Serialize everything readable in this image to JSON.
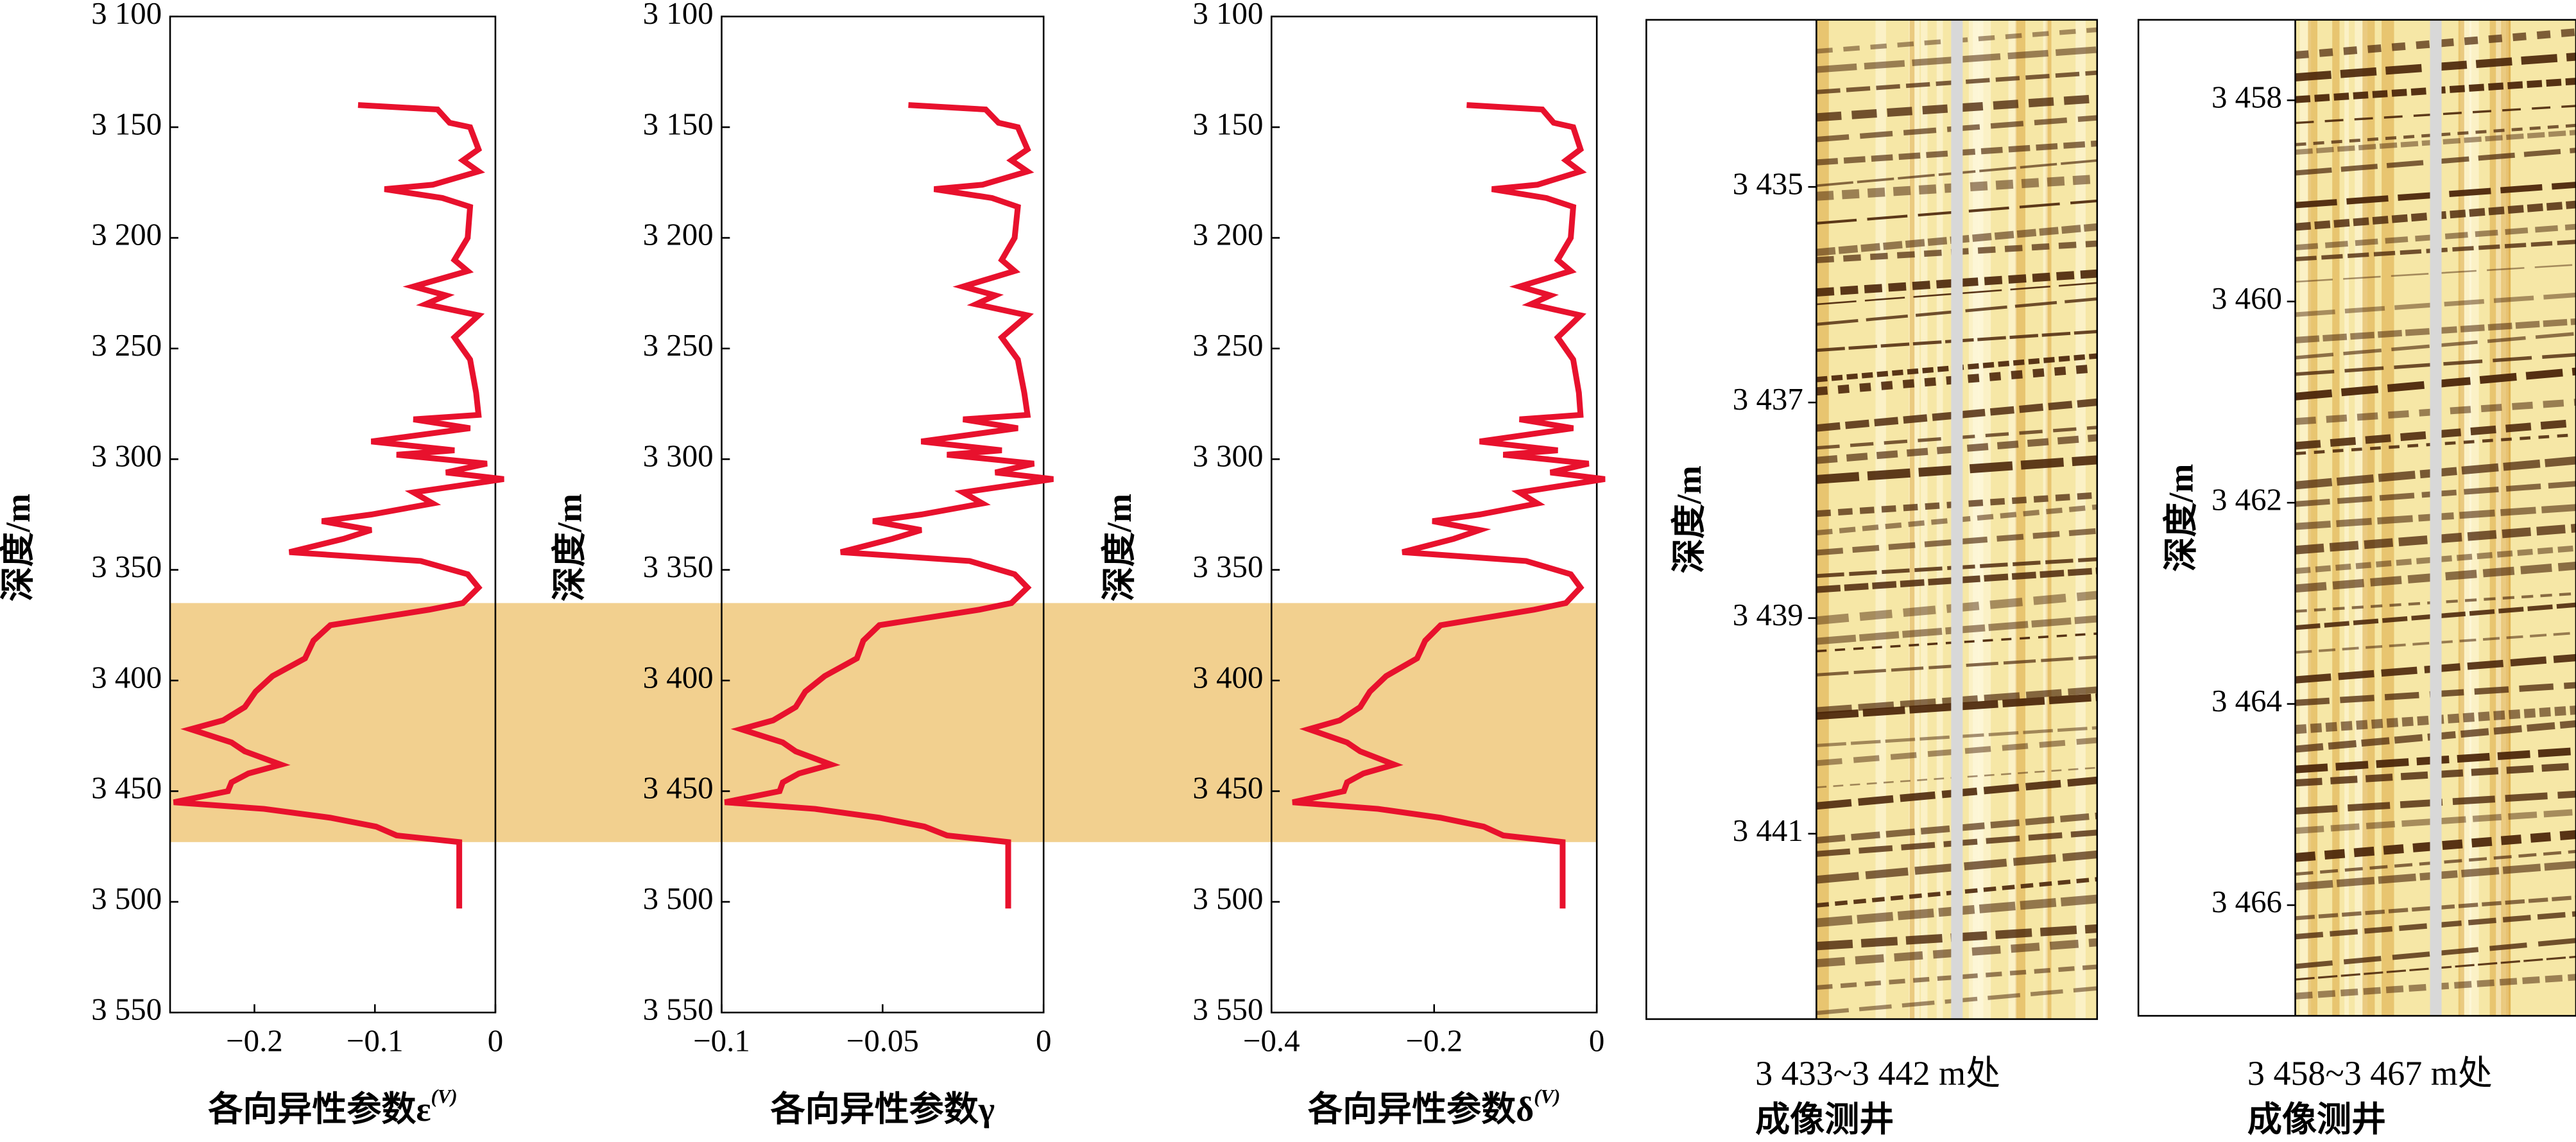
{
  "highlight": {
    "range": [
      3365,
      3473
    ],
    "color": "#f2d08f"
  },
  "chart_data": [
    {
      "type": "line",
      "y_label": "深度/m",
      "x_label": "各向异性参数ε",
      "x_label_sup": "(V)",
      "color": "#e8112d",
      "ylim": [
        3100,
        3550
      ],
      "xlim": [
        -0.27,
        0
      ],
      "yticks": [
        {
          "value": 3100,
          "label": "3 100"
        },
        {
          "value": 3150,
          "label": "3 150"
        },
        {
          "value": 3200,
          "label": "3 200"
        },
        {
          "value": 3250,
          "label": "3 250"
        },
        {
          "value": 3300,
          "label": "3 300"
        },
        {
          "value": 3350,
          "label": "3 350"
        },
        {
          "value": 3400,
          "label": "3 400"
        },
        {
          "value": 3450,
          "label": "3 450"
        },
        {
          "value": 3500,
          "label": "3 500"
        },
        {
          "value": 3550,
          "label": "3 550"
        }
      ],
      "xticks": [
        {
          "value": -0.2,
          "label": "−0.2"
        },
        {
          "value": -0.1,
          "label": "−0.1"
        },
        0
      ],
      "depth": [
        3140,
        3142,
        3148,
        3150,
        3160,
        3165,
        3170,
        3176,
        3178,
        3182,
        3186,
        3200,
        3210,
        3215,
        3222,
        3226,
        3230,
        3235,
        3245,
        3255,
        3270,
        3280,
        3282,
        3286,
        3292,
        3296,
        3298,
        3302,
        3306,
        3309,
        3315,
        3320,
        3325,
        3328,
        3332,
        3336,
        3342,
        3346,
        3352,
        3358,
        3365,
        3368,
        3375,
        3382,
        3390,
        3398,
        3405,
        3412,
        3418,
        3422,
        3428,
        3432,
        3438,
        3442,
        3446,
        3450,
        3455,
        3458,
        3462,
        3466,
        3470,
        3473,
        3503
      ],
      "values": [
        -0.114,
        -0.048,
        -0.038,
        -0.021,
        -0.014,
        -0.027,
        -0.014,
        -0.052,
        -0.092,
        -0.044,
        -0.021,
        -0.023,
        -0.034,
        -0.023,
        -0.068,
        -0.041,
        -0.058,
        -0.014,
        -0.034,
        -0.021,
        -0.016,
        -0.014,
        -0.068,
        -0.021,
        -0.103,
        -0.034,
        -0.082,
        -0.007,
        -0.041,
        0.007,
        -0.068,
        -0.052,
        -0.103,
        -0.144,
        -0.103,
        -0.126,
        -0.171,
        -0.062,
        -0.023,
        -0.014,
        -0.027,
        -0.055,
        -0.137,
        -0.151,
        -0.158,
        -0.185,
        -0.199,
        -0.208,
        -0.226,
        -0.253,
        -0.219,
        -0.208,
        -0.178,
        -0.205,
        -0.219,
        -0.222,
        -0.267,
        -0.192,
        -0.137,
        -0.099,
        -0.082,
        -0.03,
        -0.03
      ]
    },
    {
      "type": "line",
      "y_label": "深度/m",
      "x_label": "各向异性参数γ",
      "color": "#e8112d",
      "ylim": [
        3100,
        3550
      ],
      "xlim": [
        -0.1,
        0
      ],
      "yticks": [
        {
          "value": 3100,
          "label": "3 100"
        },
        {
          "value": 3150,
          "label": "3 150"
        },
        {
          "value": 3200,
          "label": "3 200"
        },
        {
          "value": 3250,
          "label": "3 250"
        },
        {
          "value": 3300,
          "label": "3 300"
        },
        {
          "value": 3350,
          "label": "3 350"
        },
        {
          "value": 3400,
          "label": "3 400"
        },
        {
          "value": 3450,
          "label": "3 450"
        },
        {
          "value": 3500,
          "label": "3 500"
        },
        {
          "value": 3550,
          "label": "3 550"
        }
      ],
      "xticks": [
        {
          "value": -0.1,
          "label": "−0.1"
        },
        {
          "value": -0.05,
          "label": "−0.05"
        },
        0
      ],
      "depth": [
        3140,
        3142,
        3148,
        3150,
        3160,
        3165,
        3170,
        3176,
        3178,
        3182,
        3186,
        3200,
        3210,
        3215,
        3222,
        3226,
        3230,
        3235,
        3245,
        3255,
        3270,
        3280,
        3282,
        3286,
        3292,
        3296,
        3298,
        3302,
        3306,
        3309,
        3315,
        3320,
        3325,
        3328,
        3332,
        3336,
        3342,
        3346,
        3352,
        3358,
        3365,
        3368,
        3375,
        3382,
        3390,
        3398,
        3405,
        3412,
        3418,
        3422,
        3428,
        3432,
        3438,
        3442,
        3446,
        3450,
        3455,
        3458,
        3462,
        3466,
        3470,
        3473,
        3503
      ],
      "values": [
        -0.042,
        -0.018,
        -0.014,
        -0.008,
        -0.005,
        -0.01,
        -0.005,
        -0.019,
        -0.034,
        -0.016,
        -0.008,
        -0.009,
        -0.013,
        -0.009,
        -0.025,
        -0.015,
        -0.021,
        -0.005,
        -0.013,
        -0.008,
        -0.006,
        -0.005,
        -0.025,
        -0.008,
        -0.038,
        -0.013,
        -0.03,
        -0.003,
        -0.015,
        0.003,
        -0.025,
        -0.019,
        -0.038,
        -0.053,
        -0.038,
        -0.047,
        -0.063,
        -0.023,
        -0.009,
        -0.005,
        -0.01,
        -0.02,
        -0.051,
        -0.056,
        -0.058,
        -0.068,
        -0.074,
        -0.077,
        -0.084,
        -0.094,
        -0.081,
        -0.077,
        -0.066,
        -0.076,
        -0.081,
        -0.082,
        -0.099,
        -0.071,
        -0.051,
        -0.037,
        -0.03,
        -0.011,
        -0.011
      ]
    },
    {
      "type": "line",
      "y_label": "深度/m",
      "x_label": "各向异性参数δ",
      "x_label_sup": "(V)",
      "color": "#e8112d",
      "ylim": [
        3100,
        3550
      ],
      "xlim": [
        -0.4,
        0
      ],
      "yticks": [
        {
          "value": 3100,
          "label": "3 100"
        },
        {
          "value": 3150,
          "label": "3 150"
        },
        {
          "value": 3200,
          "label": "3 200"
        },
        {
          "value": 3250,
          "label": "3 250"
        },
        {
          "value": 3300,
          "label": "3 300"
        },
        {
          "value": 3350,
          "label": "3 350"
        },
        {
          "value": 3400,
          "label": "3 400"
        },
        {
          "value": 3450,
          "label": "3 450"
        },
        {
          "value": 3500,
          "label": "3 500"
        },
        {
          "value": 3550,
          "label": "3 550"
        }
      ],
      "xticks": [
        {
          "value": -0.4,
          "label": "−0.4"
        },
        {
          "value": -0.2,
          "label": "−0.2"
        },
        0
      ],
      "depth": [
        3140,
        3142,
        3148,
        3150,
        3160,
        3165,
        3170,
        3176,
        3178,
        3182,
        3186,
        3200,
        3210,
        3215,
        3222,
        3226,
        3230,
        3235,
        3245,
        3255,
        3270,
        3280,
        3282,
        3286,
        3292,
        3296,
        3298,
        3302,
        3306,
        3309,
        3315,
        3320,
        3325,
        3328,
        3332,
        3336,
        3342,
        3346,
        3352,
        3358,
        3365,
        3368,
        3375,
        3382,
        3390,
        3398,
        3405,
        3412,
        3418,
        3422,
        3428,
        3432,
        3438,
        3442,
        3446,
        3450,
        3455,
        3458,
        3462,
        3466,
        3470,
        3473,
        3503
      ],
      "values": [
        -0.16,
        -0.067,
        -0.053,
        -0.029,
        -0.02,
        -0.038,
        -0.02,
        -0.073,
        -0.129,
        -0.062,
        -0.029,
        -0.032,
        -0.048,
        -0.032,
        -0.095,
        -0.057,
        -0.081,
        -0.02,
        -0.048,
        -0.029,
        -0.022,
        -0.02,
        -0.095,
        -0.029,
        -0.144,
        -0.048,
        -0.115,
        -0.01,
        -0.057,
        0.01,
        -0.095,
        -0.073,
        -0.144,
        -0.202,
        -0.144,
        -0.176,
        -0.239,
        -0.087,
        -0.032,
        -0.02,
        -0.038,
        -0.077,
        -0.192,
        -0.211,
        -0.221,
        -0.259,
        -0.279,
        -0.291,
        -0.316,
        -0.354,
        -0.307,
        -0.291,
        -0.249,
        -0.287,
        -0.307,
        -0.311,
        -0.374,
        -0.269,
        -0.192,
        -0.139,
        -0.115,
        -0.042,
        -0.042
      ]
    },
    {
      "type": "image_log",
      "y_label": "深度/m",
      "ylim": [
        3433.45,
        3442.72
      ],
      "yticks": [
        {
          "value": 3435,
          "label": "3 435"
        },
        {
          "value": 3437,
          "label": "3 437"
        },
        {
          "value": 3439,
          "label": "3 439"
        },
        {
          "value": 3441,
          "label": "3 441"
        }
      ],
      "caption": [
        "3 433~3 442 m处",
        "成像测井"
      ]
    },
    {
      "type": "image_log",
      "y_label": "深度/m",
      "ylim": [
        3457.2,
        3467.1
      ],
      "yticks": [
        {
          "value": 3458,
          "label": "3 458"
        },
        {
          "value": 3460,
          "label": "3 460"
        },
        {
          "value": 3462,
          "label": "3 462"
        },
        {
          "value": 3464,
          "label": "3 464"
        },
        {
          "value": 3466,
          "label": "3 466"
        }
      ],
      "caption": [
        "3 458~3 467 m处",
        "成像测井"
      ]
    }
  ]
}
